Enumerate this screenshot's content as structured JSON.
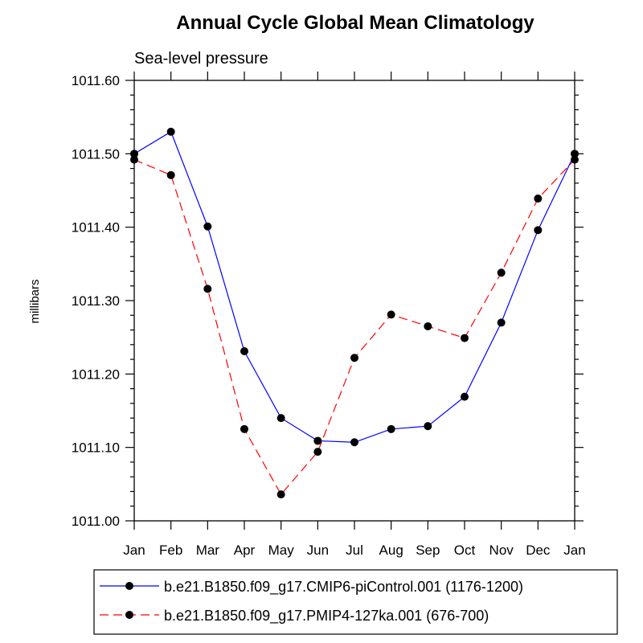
{
  "chart_data": {
    "type": "line",
    "title": "Annual Cycle Global Mean Climatology",
    "subtitle": "Sea-level pressure",
    "ylabel": "millibars",
    "xlabel": "",
    "categories": [
      "Jan",
      "Feb",
      "Mar",
      "Apr",
      "May",
      "Jun",
      "Jul",
      "Aug",
      "Sep",
      "Oct",
      "Nov",
      "Dec",
      "Jan"
    ],
    "ylim": [
      1011.0,
      1011.6
    ],
    "yticks": [
      1011.0,
      1011.1,
      1011.2,
      1011.3,
      1011.4,
      1011.5,
      1011.6
    ],
    "ytick_labels": [
      "1011.00",
      "1011.10",
      "1011.20",
      "1011.30",
      "1011.40",
      "1011.50",
      "1011.60"
    ],
    "grid": false,
    "legend_position": "bottom",
    "series": [
      {
        "name": "b.e21.B1850.f09_g17.CMIP6-piControl.001 (1176-1200)",
        "color": "#0000ff",
        "dash": "solid",
        "marker": "filled-circle",
        "values": [
          1011.5,
          1011.53,
          1011.401,
          1011.231,
          1011.14,
          1011.109,
          1011.107,
          1011.125,
          1011.129,
          1011.169,
          1011.27,
          1011.396,
          1011.5
        ]
      },
      {
        "name": "b.e21.B1850.f09_g17.PMIP4-127ka.001 (676-700)",
        "color": "#ff0000",
        "dash": "dashed",
        "marker": "filled-circle",
        "values": [
          1011.492,
          1011.471,
          1011.316,
          1011.125,
          1011.036,
          1011.094,
          1011.222,
          1011.281,
          1011.265,
          1011.249,
          1011.338,
          1011.439,
          1011.492
        ]
      }
    ]
  }
}
